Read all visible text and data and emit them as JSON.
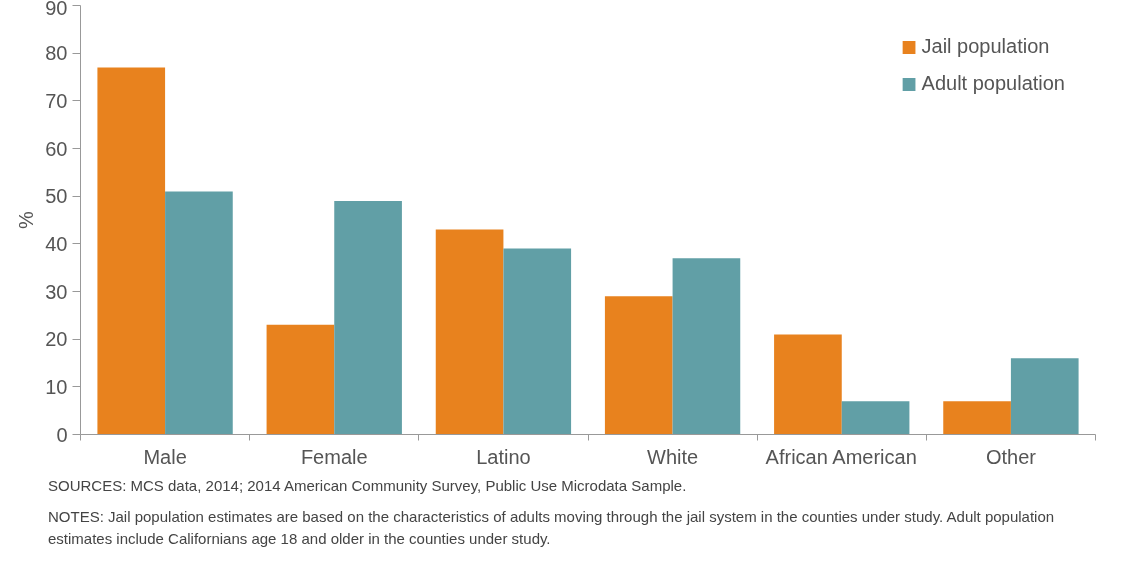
{
  "chart_data": {
    "type": "bar",
    "categories": [
      "Male",
      "Female",
      "Latino",
      "White",
      "African American",
      "Other"
    ],
    "series": [
      {
        "name": "Jail population",
        "color": "#e8821e",
        "values": [
          77,
          23,
          43,
          29,
          21,
          7
        ]
      },
      {
        "name": "Adult population",
        "color": "#619fa6",
        "values": [
          51,
          49,
          39,
          37,
          7,
          16
        ]
      }
    ],
    "ylabel": "%",
    "ylim": [
      0,
      90
    ],
    "yticks": [
      0,
      10,
      20,
      30,
      40,
      50,
      60,
      70,
      80,
      90
    ],
    "grid": false,
    "legend": "top right",
    "annotations": [
      "SOURCES: MCS data, 2014; 2014 American Community Survey, Public Use Microdata Sample.",
      "NOTES: Jail population estimates are based on the characteristics of adults moving through the jail system in the counties under study. Adult population estimates include Californians age 18 and older in the counties under study."
    ]
  }
}
